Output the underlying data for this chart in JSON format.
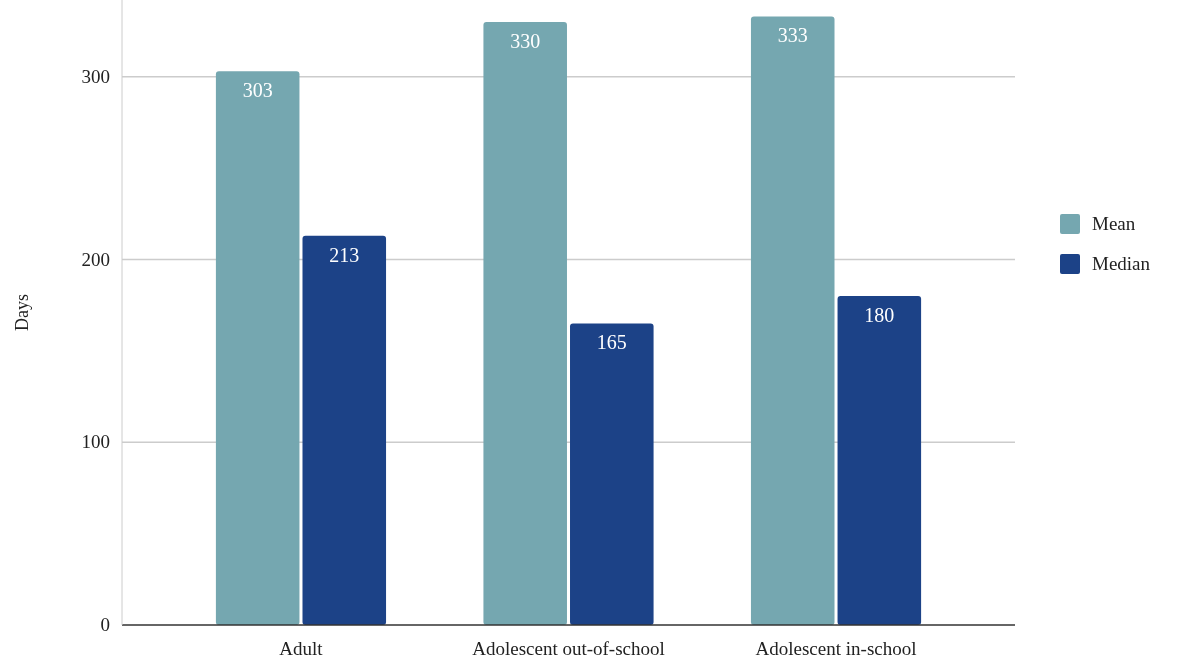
{
  "chart_data": {
    "type": "bar",
    "ylabel": "Days",
    "categories": [
      "Adult",
      "Adolescent out-of-school",
      "Adolescent in-school"
    ],
    "series": [
      {
        "name": "Mean",
        "color": "#75a7b0",
        "values": [
          303,
          330,
          333
        ]
      },
      {
        "name": "Median",
        "color": "#1c4287",
        "values": [
          213,
          165,
          180
        ]
      }
    ],
    "ylim": [
      0,
      342
    ],
    "yticks": [
      0,
      100,
      200,
      300
    ],
    "grid": "y",
    "legend": "right",
    "data_labels": true
  }
}
